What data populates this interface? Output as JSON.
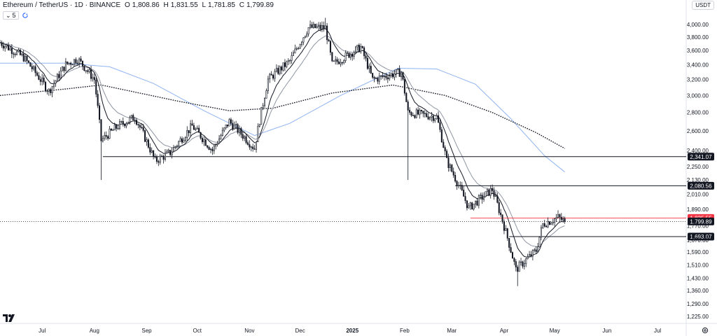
{
  "header": {
    "symbol": "Ethereum / TetherUS · 1D · BINANCE",
    "open_label": "O",
    "open": "1,808.86",
    "high_label": "H",
    "high": "1,831.55",
    "low_label": "L",
    "low": "1,781.85",
    "close_label": "C",
    "close": "1,799.89"
  },
  "indicator_toggle": {
    "chevron": "⌄",
    "count": "5"
  },
  "currency_button": "USDT",
  "icons": {
    "logo": "tradingview-logo-icon",
    "settings": "gear-icon",
    "refresh": "refresh-icon"
  },
  "colors": {
    "candle": "#131722",
    "ema_fast": "#131722",
    "ema_slow": "#8f96a3",
    "ma_blue": "#90b4f2",
    "ma_dotted": "#131722",
    "red_level": "#f23645",
    "grid": "#f0f3fa"
  },
  "chart_data": {
    "type": "candlestick",
    "ylim": [
      1225,
      4100
    ],
    "y_ticks": [
      "4,000.00",
      "3,800.00",
      "3,600.00",
      "3,400.00",
      "3,200.00",
      "3,000.00",
      "2,800.00",
      "2,600.00",
      "2,400.00",
      "2,250.00",
      "2,130.00",
      "2,010.00",
      "1,890.00",
      "1,770.00",
      "1,670.00",
      "1,590.00",
      "1,510.00",
      "1,430.00",
      "1,360.00",
      "1,290.00",
      "1,225.00"
    ],
    "x_labels": [
      "Jul",
      "Aug",
      "Sep",
      "Oct",
      "Nov",
      "Dec",
      "2025",
      "Feb",
      "Mar",
      "Apr",
      "May",
      "Jun",
      "Jul"
    ],
    "x_dates": [
      "2024-07-01",
      "2024-08-01",
      "2024-09-01",
      "2024-10-01",
      "2024-11-01",
      "2024-12-01",
      "2025-01-01",
      "2025-02-01",
      "2025-03-01",
      "2025-04-01",
      "2025-05-01",
      "2025-06-01",
      "2025-07-01"
    ],
    "x_range": [
      "2024-06-06",
      "2025-07-18"
    ],
    "price_path": [
      [
        "2024-06-06",
        3720
      ],
      [
        "2024-06-20",
        3500
      ],
      [
        "2024-07-05",
        3050
      ],
      [
        "2024-07-15",
        3400
      ],
      [
        "2024-07-22",
        3480
      ],
      [
        "2024-08-01",
        3200
      ],
      [
        "2024-08-05",
        2500
      ],
      [
        "2024-08-15",
        2650
      ],
      [
        "2024-08-25",
        2750
      ],
      [
        "2024-09-06",
        2300
      ],
      [
        "2024-09-15",
        2380
      ],
      [
        "2024-09-28",
        2650
      ],
      [
        "2024-10-10",
        2400
      ],
      [
        "2024-10-20",
        2700
      ],
      [
        "2024-11-04",
        2420
      ],
      [
        "2024-11-12",
        3200
      ],
      [
        "2024-11-25",
        3450
      ],
      [
        "2024-12-06",
        3950
      ],
      [
        "2024-12-16",
        3950
      ],
      [
        "2024-12-20",
        3400
      ],
      [
        "2025-01-06",
        3650
      ],
      [
        "2025-01-13",
        3200
      ],
      [
        "2025-01-30",
        3300
      ],
      [
        "2025-02-03",
        2800
      ],
      [
        "2025-02-20",
        2750
      ],
      [
        "2025-02-26",
        2300
      ],
      [
        "2025-03-11",
        1900
      ],
      [
        "2025-03-25",
        2050
      ],
      [
        "2025-04-08",
        1480
      ],
      [
        "2025-04-20",
        1600
      ],
      [
        "2025-04-24",
        1780
      ],
      [
        "2025-05-03",
        1830
      ],
      [
        "2025-05-07",
        1800
      ]
    ],
    "wick_extremes": [
      [
        "2024-08-05",
        2130
      ],
      [
        "2025-02-03",
        2130
      ],
      [
        "2025-04-09",
        1385
      ],
      [
        "2024-12-16",
        4110
      ]
    ],
    "price_levels": [
      {
        "label": "2,341.07",
        "value": 2341.07,
        "from": "2024-08-06"
      },
      {
        "label": "2,080.56",
        "value": 2080.56,
        "from": "2025-03-03"
      },
      {
        "label": "1,825.55",
        "value": 1825.55,
        "from": "2025-03-12",
        "color": "red"
      },
      {
        "label": "1,693.07",
        "value": 1693.07,
        "from": "2025-04-04"
      }
    ],
    "current_price": {
      "label": "1,799.89",
      "value": 1799.89
    },
    "ma_slow_path": [
      [
        "2024-06-06",
        3000
      ],
      [
        "2024-07-15",
        3080
      ],
      [
        "2024-08-05",
        3130
      ],
      [
        "2024-09-20",
        2930
      ],
      [
        "2024-10-20",
        2820
      ],
      [
        "2024-11-15",
        2850
      ],
      [
        "2024-12-20",
        3030
      ],
      [
        "2025-01-25",
        3130
      ],
      [
        "2025-02-25",
        3000
      ],
      [
        "2025-03-25",
        2800
      ],
      [
        "2025-04-20",
        2580
      ],
      [
        "2025-05-07",
        2420
      ]
    ],
    "ma_blue_path": [
      [
        "2024-06-06",
        3420
      ],
      [
        "2024-07-15",
        3420
      ],
      [
        "2024-08-10",
        3370
      ],
      [
        "2024-09-05",
        3150
      ],
      [
        "2024-10-05",
        2820
      ],
      [
        "2024-11-04",
        2550
      ],
      [
        "2024-11-25",
        2680
      ],
      [
        "2024-12-25",
        3000
      ],
      [
        "2025-01-28",
        3350
      ],
      [
        "2025-02-20",
        3340
      ],
      [
        "2025-03-15",
        3140
      ],
      [
        "2025-04-05",
        2730
      ],
      [
        "2025-04-25",
        2350
      ],
      [
        "2025-05-07",
        2200
      ]
    ]
  }
}
